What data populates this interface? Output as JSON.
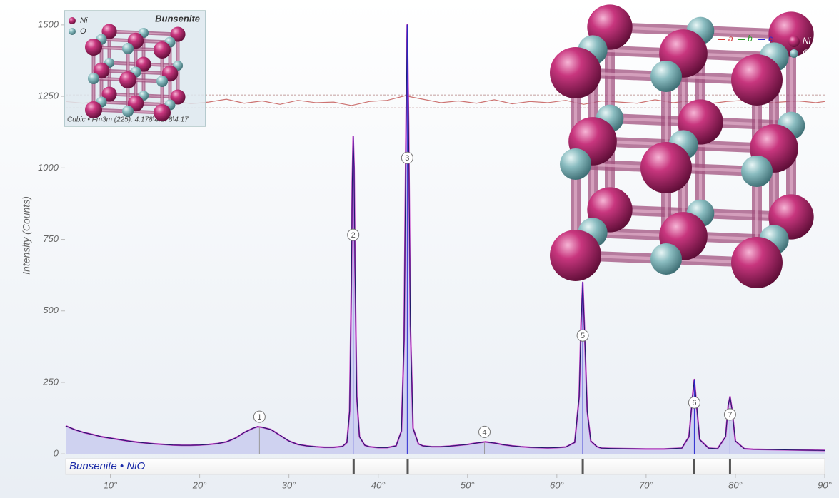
{
  "chart_data": {
    "type": "line",
    "ylabel": "Intensity (Counts)",
    "phase_label": "Bunsenite • NiO",
    "xlim": [
      5,
      90
    ],
    "ylim": [
      -12,
      1587
    ],
    "xticks": [
      {
        "value": 10,
        "label": "10°"
      },
      {
        "value": 20,
        "label": "20°"
      },
      {
        "value": 30,
        "label": "30°"
      },
      {
        "value": 40,
        "label": "40°"
      },
      {
        "value": 50,
        "label": "50°"
      },
      {
        "value": 60,
        "label": "60°"
      },
      {
        "value": 70,
        "label": "70°"
      },
      {
        "value": 80,
        "label": "80°"
      },
      {
        "value": 90,
        "label": "90°"
      }
    ],
    "yticks": [
      0,
      250,
      500,
      750,
      1000,
      1250,
      1500
    ],
    "color": "#1c1c66",
    "fit_color": "#c83cc8",
    "x": [
      5,
      6,
      7,
      8,
      9,
      10,
      11,
      12,
      13,
      14,
      15,
      16,
      17,
      18,
      19,
      20,
      21,
      22,
      23,
      24,
      25,
      26,
      26.5,
      27,
      28,
      29,
      30,
      31,
      32,
      33,
      34,
      35,
      36,
      36.5,
      36.8,
      37,
      37.1,
      37.2,
      37.3,
      37.4,
      37.6,
      37.9,
      38.5,
      39,
      40,
      41,
      42,
      42.6,
      42.9,
      43.1,
      43.25,
      43.4,
      43.6,
      43.9,
      44.5,
      45,
      46,
      47,
      48,
      49,
      50,
      51,
      52,
      53,
      54,
      55,
      56,
      57,
      58,
      59,
      60,
      61,
      62,
      62.5,
      62.7,
      62.9,
      63.1,
      63.4,
      63.8,
      64.5,
      65,
      66,
      68,
      70,
      72,
      74,
      74.8,
      75.2,
      75.4,
      75.6,
      76,
      77,
      78,
      78.9,
      79.2,
      79.4,
      79.6,
      80,
      81,
      82,
      84,
      86,
      88,
      90
    ],
    "values": [
      98,
      85,
      75,
      68,
      60,
      55,
      50,
      45,
      41,
      38,
      35,
      33,
      31,
      30,
      30,
      31,
      33,
      36,
      42,
      55,
      75,
      90,
      95,
      93,
      85,
      65,
      45,
      33,
      28,
      25,
      23,
      23,
      26,
      40,
      150,
      600,
      950,
      1110,
      1000,
      650,
      200,
      60,
      30,
      25,
      22,
      22,
      28,
      80,
      400,
      1100,
      1500,
      1150,
      450,
      90,
      35,
      28,
      25,
      25,
      27,
      30,
      33,
      38,
      42,
      38,
      32,
      28,
      25,
      23,
      22,
      21,
      22,
      24,
      40,
      200,
      450,
      600,
      430,
      150,
      45,
      25,
      20,
      19,
      18,
      17,
      17,
      20,
      60,
      200,
      260,
      190,
      50,
      20,
      18,
      60,
      170,
      200,
      160,
      45,
      18,
      16,
      15,
      14,
      13,
      12
    ],
    "residual_color": "#c0504d",
    "residual_x": [
      5,
      7,
      9,
      11,
      13,
      15,
      17,
      19,
      21,
      23,
      25,
      27,
      29,
      31,
      33,
      35,
      37,
      39,
      41,
      43,
      45,
      47,
      49,
      51,
      53,
      55,
      57,
      59,
      61,
      63,
      65,
      67,
      69,
      71,
      73,
      75,
      77,
      79,
      81,
      83,
      85,
      87,
      89,
      90
    ],
    "residual_values": [
      1232,
      1226,
      1238,
      1222,
      1234,
      1228,
      1236,
      1224,
      1230,
      1240,
      1226,
      1234,
      1222,
      1236,
      1228,
      1230,
      1218,
      1232,
      1236,
      1252,
      1240,
      1228,
      1234,
      1226,
      1238,
      1224,
      1232,
      1228,
      1236,
      1222,
      1234,
      1230,
      1226,
      1238,
      1228,
      1234,
      1224,
      1232,
      1236,
      1226,
      1230,
      1234,
      1228,
      1232
    ],
    "residual_band": [
      1210,
      1255
    ],
    "peaks": [
      {
        "label": "1",
        "x": 26.7,
        "height": 95
      },
      {
        "label": "2",
        "x": 37.2,
        "height": 1110
      },
      {
        "label": "3",
        "x": 43.25,
        "height": 1500
      },
      {
        "label": "4",
        "x": 51.9,
        "height": 42
      },
      {
        "label": "5",
        "x": 62.9,
        "height": 600
      },
      {
        "label": "6",
        "x": 75.4,
        "height": 260
      },
      {
        "label": "7",
        "x": 79.4,
        "height": 200
      }
    ],
    "reference_lines": [
      37.25,
      43.3,
      62.9,
      75.4,
      79.4
    ]
  },
  "crystal": {
    "title": "Bunsenite",
    "elements": [
      "Ni",
      "O"
    ],
    "cell": "Cubic • Fm3m (225): 4.178\\4.178\\4.17",
    "axes": [
      "a",
      "b",
      "c"
    ]
  }
}
